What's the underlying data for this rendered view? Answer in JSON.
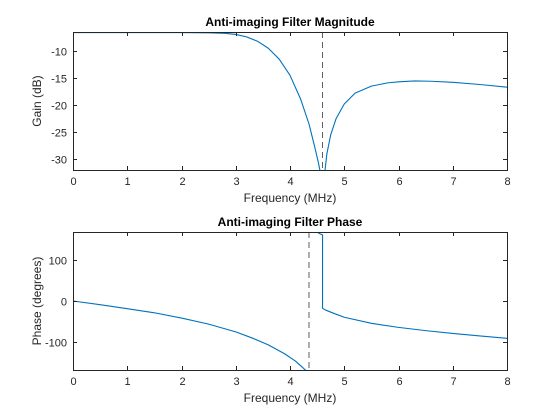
{
  "colors": {
    "series": "#0072bd",
    "axes": "#262626"
  },
  "chart_data": [
    {
      "type": "line",
      "title": "Anti-imaging Filter Magnitude",
      "xlabel": "Frequency (MHz)",
      "ylabel": "Gain (dB)",
      "xlim": [
        0,
        8
      ],
      "ylim": [
        -32,
        -6.5
      ],
      "xticks": [
        0,
        1,
        2,
        3,
        4,
        5,
        6,
        7,
        8
      ],
      "xtick_labels": [
        "0",
        "1",
        "2",
        "3",
        "4",
        "5",
        "6",
        "7",
        "8"
      ],
      "yticks": [
        -30,
        -25,
        -20,
        -15,
        -10
      ],
      "ytick_labels": [
        "-30",
        "-25",
        "-20",
        "-15",
        "-10"
      ],
      "grid": false,
      "vline_x": 4.6,
      "series": [
        {
          "x": [
            0,
            0.5,
            1,
            1.5,
            2,
            2.5,
            2.8,
            3,
            3.2,
            3.4,
            3.6,
            3.8,
            4,
            4.2,
            4.35,
            4.45,
            4.52,
            4.56
          ],
          "y": [
            -6.6,
            -6.6,
            -6.6,
            -6.6,
            -6.6,
            -6.65,
            -6.75,
            -6.95,
            -7.4,
            -8.2,
            -9.5,
            -11.5,
            -14.5,
            -19.0,
            -23.5,
            -27.5,
            -30.5,
            -32.5
          ]
        },
        {
          "x": [
            4.64,
            4.68,
            4.75,
            4.85,
            5,
            5.2,
            5.5,
            5.8,
            6,
            6.3,
            6.6,
            7,
            7.5,
            8
          ],
          "y": [
            -32.5,
            -29.0,
            -25.5,
            -22.5,
            -19.8,
            -17.8,
            -16.5,
            -15.9,
            -15.7,
            -15.55,
            -15.6,
            -15.8,
            -16.2,
            -16.7
          ]
        }
      ]
    },
    {
      "type": "line",
      "title": "Anti-imaging Filter Phase",
      "xlabel": "Frequency (MHz)",
      "ylabel": "Phase (degrees)",
      "xlim": [
        0,
        8
      ],
      "ylim": [
        -170,
        170
      ],
      "xticks": [
        0,
        1,
        2,
        3,
        4,
        5,
        6,
        7,
        8
      ],
      "xtick_labels": [
        "0",
        "1",
        "2",
        "3",
        "4",
        "5",
        "6",
        "7",
        "8"
      ],
      "yticks": [
        -100,
        0,
        100
      ],
      "ytick_labels": [
        "-100",
        "0",
        "100"
      ],
      "grid": false,
      "vline_x": 4.35,
      "series": [
        {
          "x": [
            0,
            0.5,
            1,
            1.5,
            2,
            2.5,
            3,
            3.3,
            3.6,
            3.9,
            4.1,
            4.2,
            4.3
          ],
          "y": [
            0,
            -9,
            -19,
            -29,
            -42,
            -57,
            -76,
            -91,
            -108,
            -130,
            -148,
            -160,
            -172
          ]
        },
        {
          "x": [
            4.5,
            4.52,
            4.56,
            4.6,
            4.6,
            4.65,
            4.8,
            5,
            5.5,
            6,
            6.5,
            7,
            7.5,
            8
          ],
          "y": [
            172,
            168,
            165,
            163,
            -18,
            -22,
            -30,
            -40,
            -55,
            -65,
            -73,
            -80,
            -86,
            -92
          ]
        }
      ]
    }
  ]
}
